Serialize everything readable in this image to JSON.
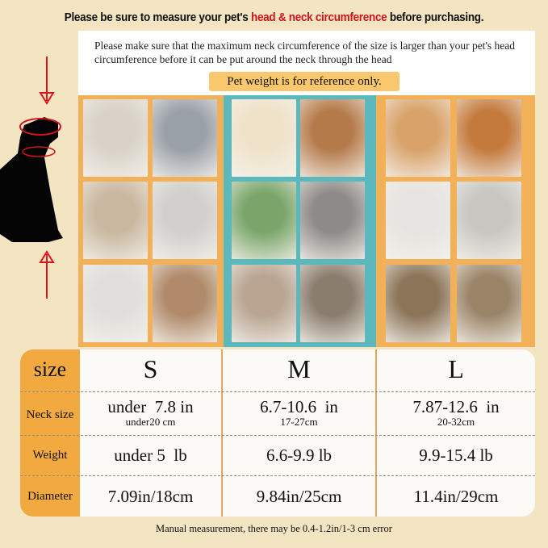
{
  "headline": {
    "part1": "Please be sure to measure your pet's ",
    "highlight": "head & neck circumference",
    "part2": " before purchasing."
  },
  "note": "Please make sure that the maximum neck circumference of the size is larger than your pet's head circumference before it can be put around the neck through the head",
  "reference": "Pet weight is for reference only.",
  "colors": {
    "accent": "#f2a93f",
    "teal": "#5bb8bc",
    "highlight_red": "#d0121b",
    "background": "#f4e5c2"
  },
  "table": {
    "header_label": "size",
    "sizes": [
      "S",
      "M",
      "L"
    ],
    "rows": [
      {
        "label": "Neck size",
        "values": [
          {
            "main": "under  7.8 in",
            "sub": "under20 cm"
          },
          {
            "main": "6.7-10.6  in",
            "sub": "17-27cm"
          },
          {
            "main": "7.87-12.6  in",
            "sub": "20-32cm"
          }
        ]
      },
      {
        "label": "Weight",
        "values": [
          {
            "main": "under 5  lb"
          },
          {
            "main": "6.6-9.9 lb"
          },
          {
            "main": "9.9-15.4 lb"
          }
        ]
      },
      {
        "label": "Diameter",
        "values": [
          {
            "main": "7.09in/18cm"
          },
          {
            "main": "9.84in/25cm"
          },
          {
            "main": "11.4in/29cm"
          }
        ]
      }
    ]
  },
  "footer": "Manual measurement, there may be 0.4-1.2in/1-3 cm error"
}
